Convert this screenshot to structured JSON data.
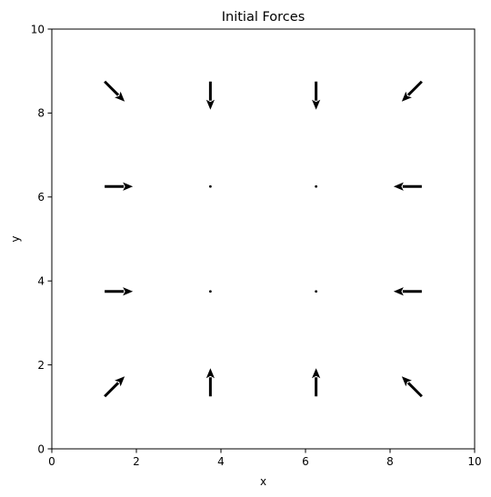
{
  "chart_data": {
    "type": "quiver",
    "title": "Initial Forces",
    "xlabel": "x",
    "ylabel": "y",
    "xlim": [
      0,
      10
    ],
    "ylim": [
      0,
      10
    ],
    "xticks": [
      "0",
      "2",
      "4",
      "6",
      "8",
      "10"
    ],
    "yticks": [
      "0",
      "2",
      "4",
      "6",
      "8",
      "10"
    ],
    "grid": false,
    "arrow_color": "#000000",
    "vectors": [
      {
        "x": 1.25,
        "y": 8.75,
        "u": 0.71,
        "v": -0.71
      },
      {
        "x": 3.75,
        "y": 8.75,
        "u": 0.0,
        "v": -1.0
      },
      {
        "x": 6.25,
        "y": 8.75,
        "u": 0.0,
        "v": -1.0
      },
      {
        "x": 8.75,
        "y": 8.75,
        "u": -0.71,
        "v": -0.71
      },
      {
        "x": 1.25,
        "y": 6.25,
        "u": 1.0,
        "v": 0.0
      },
      {
        "x": 3.75,
        "y": 6.25,
        "u": 0.0,
        "v": 0.0
      },
      {
        "x": 6.25,
        "y": 6.25,
        "u": 0.0,
        "v": 0.0
      },
      {
        "x": 8.75,
        "y": 6.25,
        "u": -1.0,
        "v": 0.0
      },
      {
        "x": 1.25,
        "y": 3.75,
        "u": 1.0,
        "v": 0.0
      },
      {
        "x": 3.75,
        "y": 3.75,
        "u": 0.0,
        "v": 0.0
      },
      {
        "x": 6.25,
        "y": 3.75,
        "u": 0.0,
        "v": 0.0
      },
      {
        "x": 8.75,
        "y": 3.75,
        "u": -1.0,
        "v": 0.0
      },
      {
        "x": 1.25,
        "y": 1.25,
        "u": 0.71,
        "v": 0.71
      },
      {
        "x": 3.75,
        "y": 1.25,
        "u": 0.0,
        "v": 1.0
      },
      {
        "x": 6.25,
        "y": 1.25,
        "u": 0.0,
        "v": 1.0
      },
      {
        "x": 8.75,
        "y": 1.25,
        "u": -0.71,
        "v": 0.71
      }
    ]
  }
}
